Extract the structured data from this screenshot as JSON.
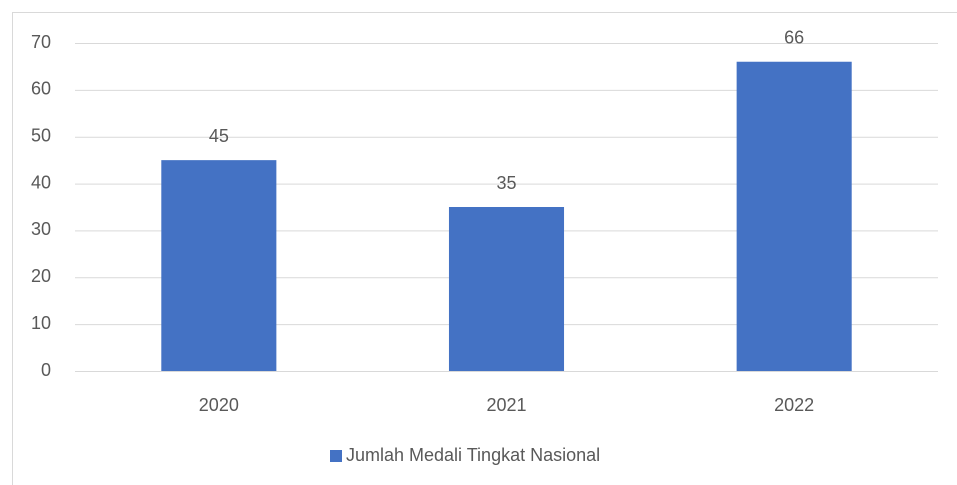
{
  "chart_data": {
    "type": "bar",
    "categories": [
      "2020",
      "2021",
      "2022"
    ],
    "series": [
      {
        "name": "Jumlah Medali Tingkat Nasional",
        "color": "#4472c4",
        "values": [
          45,
          35,
          66
        ]
      }
    ],
    "ylim": [
      0,
      70
    ],
    "yticks": [
      0,
      10,
      20,
      30,
      40,
      50,
      60,
      70
    ],
    "grid": true,
    "legend": "bottom",
    "data_labels": true
  }
}
